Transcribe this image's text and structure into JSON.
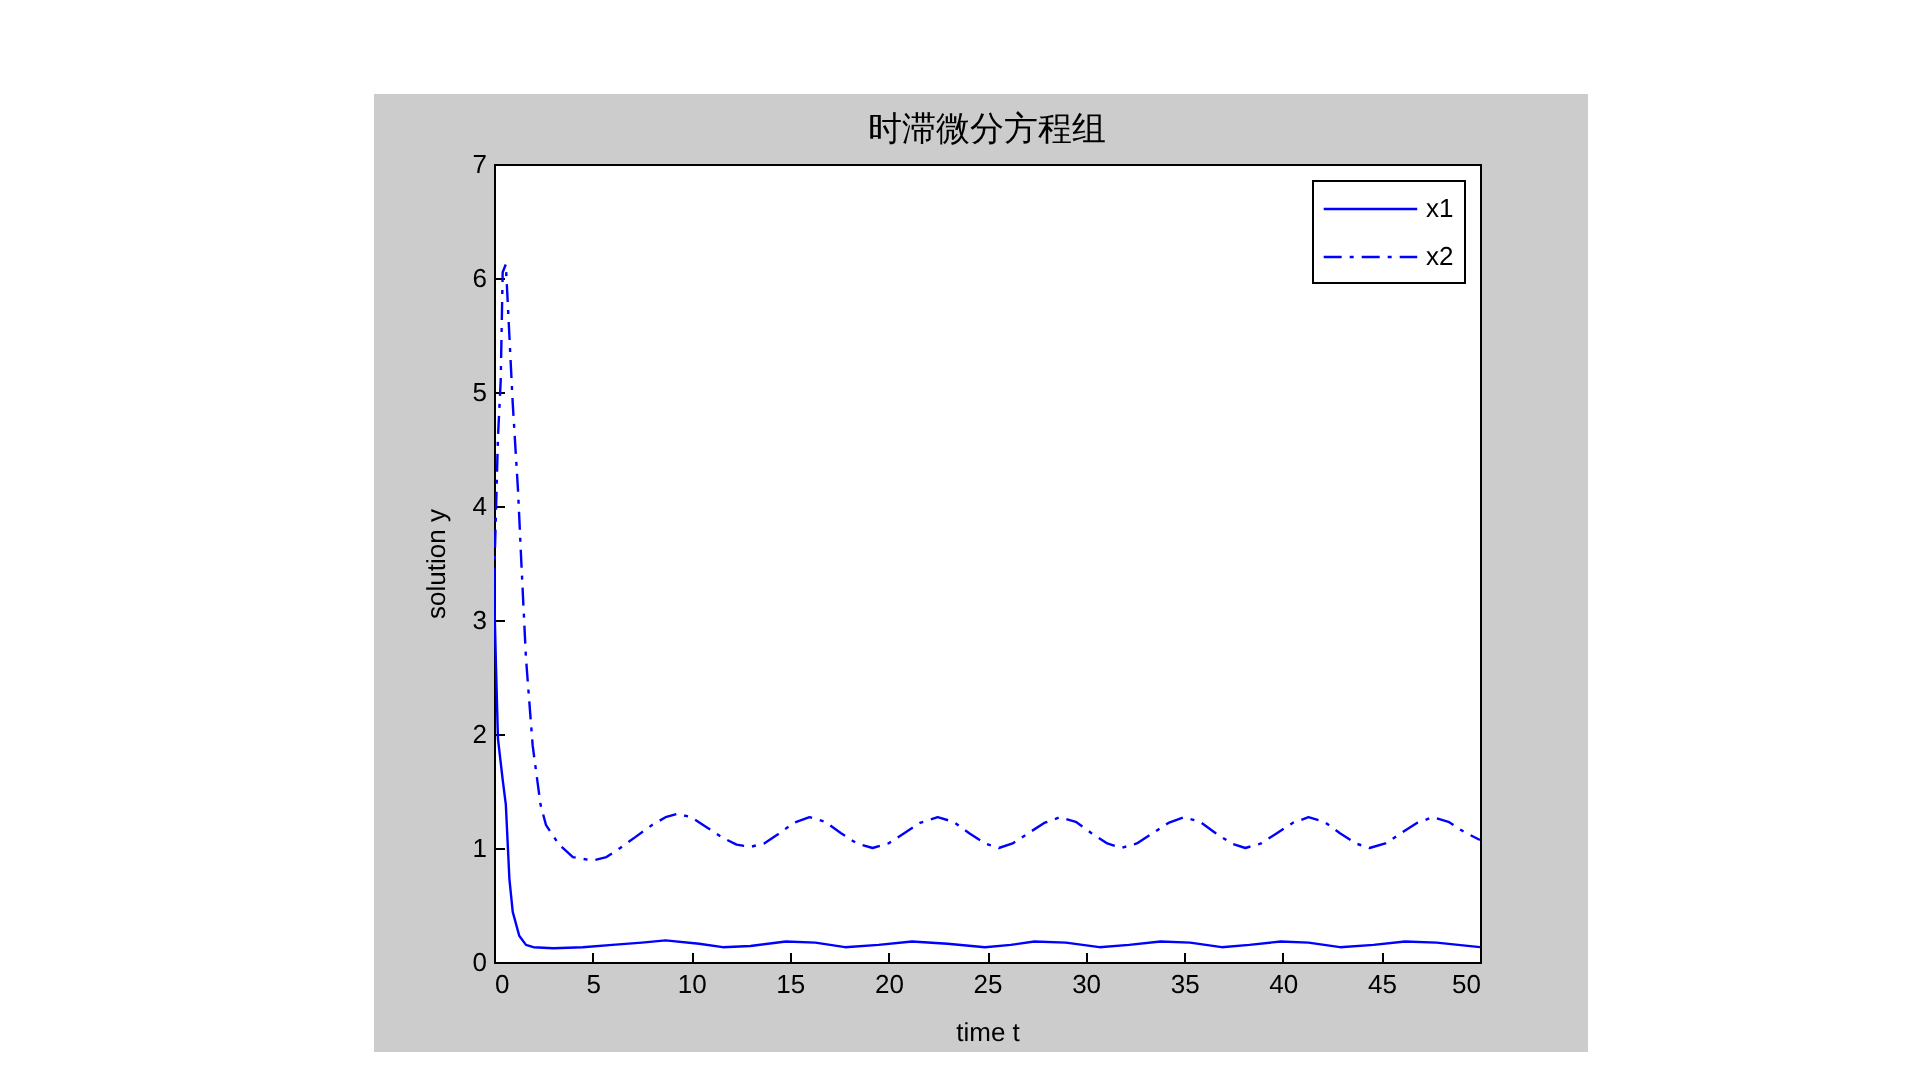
{
  "chart_data": {
    "type": "line",
    "title": "时滞微分方程组",
    "xlabel": "time t",
    "ylabel": "solution y",
    "xlim": [
      0,
      50
    ],
    "xticks": [
      0,
      5,
      10,
      15,
      20,
      25,
      30,
      35,
      40,
      45,
      50
    ],
    "ylim": [
      0,
      7
    ],
    "yticks": [
      0,
      1,
      2,
      3,
      4,
      5,
      6,
      7
    ],
    "legend": "top right",
    "series": [
      {
        "name": "x1",
        "color": "#0000ff",
        "line_style": "solid",
        "x": [
          0,
          0.1,
          0.2,
          0.44,
          0.6,
          0.78,
          0.95,
          1.28,
          1.62,
          2,
          3,
          4.5,
          6,
          7.5,
          8.7,
          10.4,
          11.6,
          13,
          14.8,
          16.3,
          17.8,
          19.5,
          21.2,
          23,
          24.9,
          26.2,
          27.4,
          29,
          30.7,
          32.2,
          33.8,
          35.3,
          36.9,
          38.3,
          39.9,
          41.3,
          42.9,
          44.6,
          46.2,
          47.8,
          50
        ],
        "values": [
          3.3,
          2.6,
          1.96,
          1.6,
          1.38,
          0.73,
          0.44,
          0.23,
          0.15,
          0.13,
          0.12,
          0.13,
          0.15,
          0.17,
          0.19,
          0.16,
          0.13,
          0.14,
          0.18,
          0.17,
          0.13,
          0.15,
          0.18,
          0.16,
          0.13,
          0.15,
          0.18,
          0.17,
          0.13,
          0.15,
          0.18,
          0.17,
          0.13,
          0.15,
          0.18,
          0.17,
          0.13,
          0.15,
          0.18,
          0.17,
          0.13
        ]
      },
      {
        "name": "x2",
        "color": "#0000ff",
        "line_style": "dashdot",
        "x": [
          0,
          0.2,
          0.34,
          0.44,
          0.6,
          0.95,
          1.22,
          1.39,
          1.62,
          1.96,
          2.36,
          2.64,
          3.3,
          4,
          5,
          5.7,
          6.4,
          7.2,
          8,
          8.7,
          9.3,
          10,
          10.8,
          11.6,
          12.3,
          13,
          13.7,
          14.4,
          15.2,
          16,
          16.8,
          17.6,
          18.4,
          19.2,
          20,
          20.8,
          21.6,
          22.5,
          23.3,
          24.1,
          24.9,
          25.6,
          26.3,
          27.1,
          27.9,
          28.7,
          29.5,
          30.3,
          31.1,
          31.8,
          32.6,
          33.4,
          34.2,
          35,
          35.8,
          36.6,
          37.4,
          38.1,
          38.9,
          39.7,
          40.5,
          41.3,
          42.1,
          42.9,
          43.7,
          44.4,
          45.2,
          46,
          46.8,
          47.6,
          48.4,
          49.2,
          50
        ],
        "values": [
          3.3,
          4.6,
          5.1,
          6.05,
          6.12,
          4.9,
          4.13,
          3.49,
          2.67,
          1.9,
          1.38,
          1.2,
          1.03,
          0.92,
          0.89,
          0.92,
          1.0,
          1.1,
          1.2,
          1.27,
          1.3,
          1.27,
          1.18,
          1.09,
          1.03,
          1.01,
          1.04,
          1.12,
          1.22,
          1.27,
          1.23,
          1.13,
          1.04,
          1.0,
          1.04,
          1.13,
          1.22,
          1.27,
          1.23,
          1.13,
          1.04,
          1.0,
          1.04,
          1.13,
          1.22,
          1.27,
          1.23,
          1.13,
          1.04,
          1.0,
          1.04,
          1.13,
          1.22,
          1.27,
          1.23,
          1.13,
          1.04,
          1.0,
          1.04,
          1.13,
          1.22,
          1.27,
          1.23,
          1.13,
          1.04,
          1.0,
          1.04,
          1.13,
          1.22,
          1.27,
          1.23,
          1.14,
          1.07
        ]
      }
    ]
  }
}
